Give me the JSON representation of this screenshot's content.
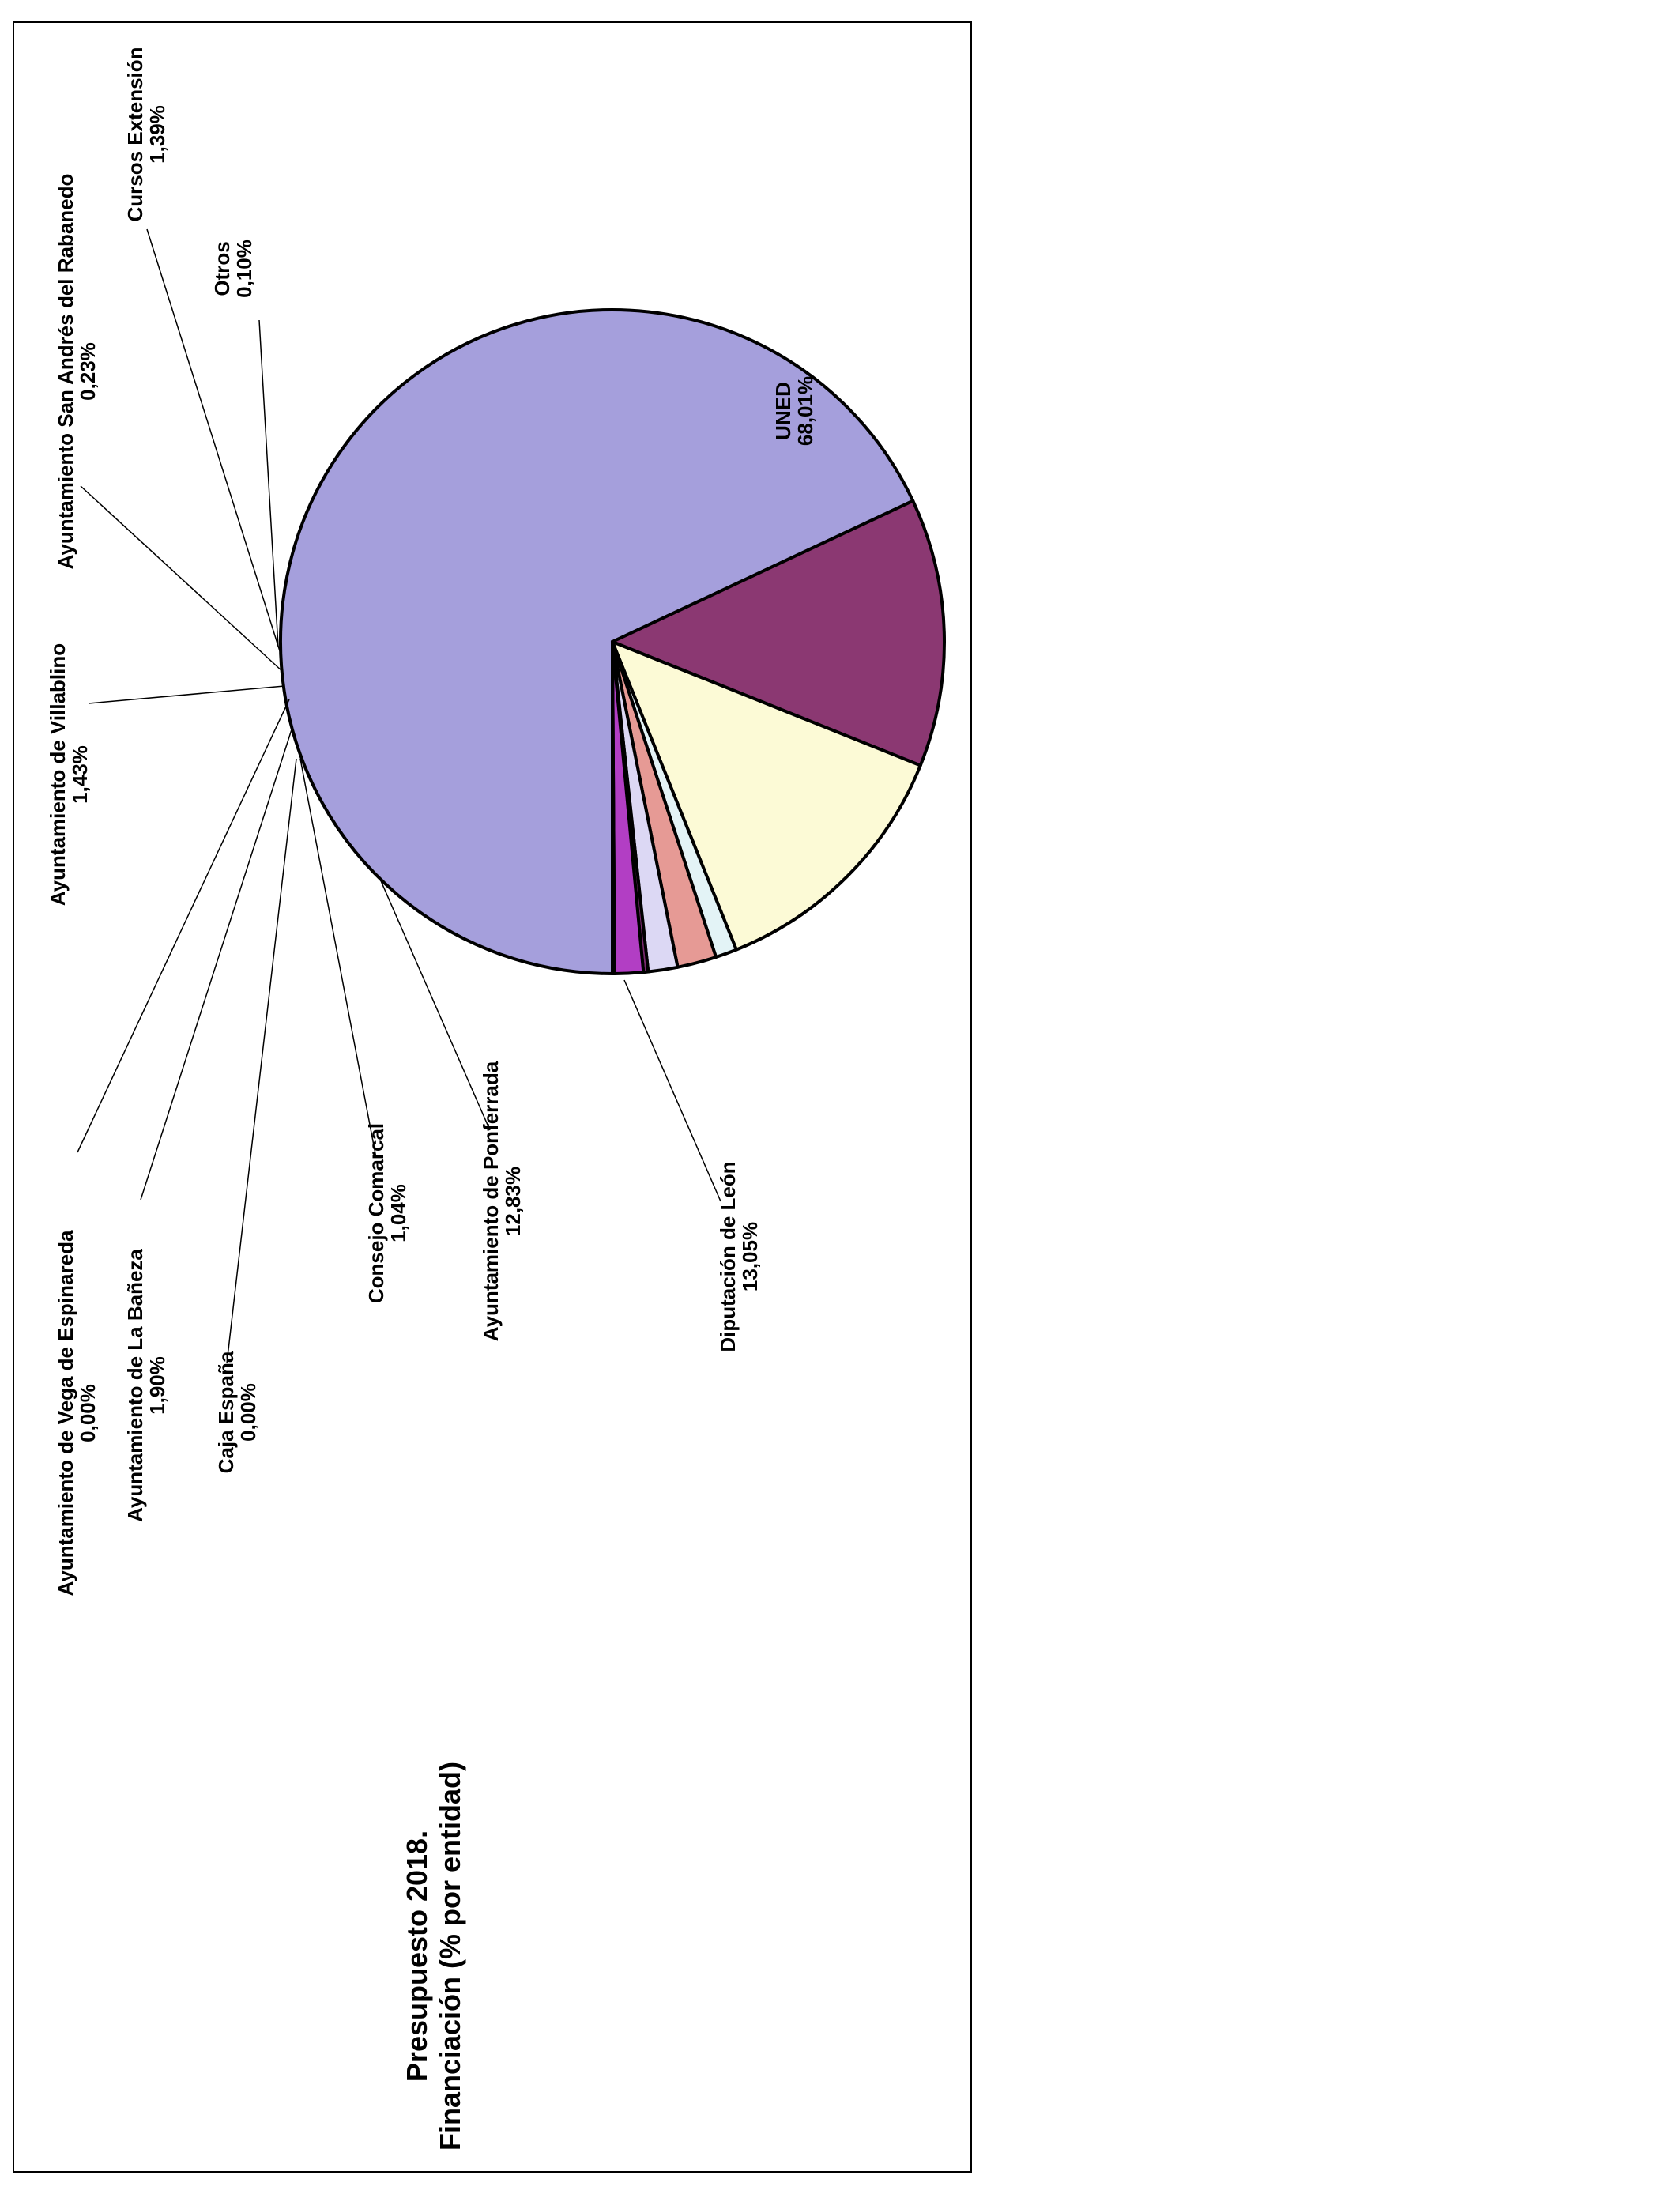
{
  "chart_data": {
    "type": "pie",
    "orientation": "rotated-90-counterclockwise",
    "title": [
      "Presupuesto 2018.",
      "Financiación (% por entidad)"
    ],
    "slices": [
      {
        "name": "UNED",
        "value_label": "68,01%",
        "value": 68.01,
        "color": "#a59fdc"
      },
      {
        "name": "Diputación de León",
        "value_label": "13,05%",
        "value": 13.05,
        "color": "#8b3872"
      },
      {
        "name": "Ayuntamiento de Ponferrada",
        "value_label": "12,83%",
        "value": 12.83,
        "color": "#fcfad6"
      },
      {
        "name": "Consejo Comarcal",
        "value_label": "1,04%",
        "value": 1.04,
        "color": "#e3f3f6"
      },
      {
        "name": "Caja España",
        "value_label": "0,00%",
        "value": 0.0,
        "color": "#ffffff"
      },
      {
        "name": "Ayuntamiento de La Bañeza",
        "value_label": "1,90%",
        "value": 1.9,
        "color": "#e69a95"
      },
      {
        "name": "Ayuntamiento de Vega de Espinareda",
        "value_label": "0,00%",
        "value": 0.0,
        "color": "#ffffff"
      },
      {
        "name": "Ayuntamiento de Villablino",
        "value_label": "1,43%",
        "value": 1.43,
        "color": "#dcd8f4"
      },
      {
        "name": "Ayuntamiento  San Andrés del Rabanedo",
        "value_label": "0,23%",
        "value": 0.23,
        "color": "#7a2a70"
      },
      {
        "name": "Cursos Extensión",
        "value_label": "1,39%",
        "value": 1.39,
        "color": "#b23ec4"
      },
      {
        "name": "Otros",
        "value_label": "0,10%",
        "value": 0.1,
        "color": "#1a1a40"
      }
    ]
  }
}
